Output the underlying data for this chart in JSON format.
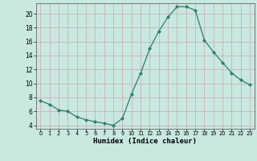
{
  "x": [
    0,
    1,
    2,
    3,
    4,
    5,
    6,
    7,
    8,
    9,
    10,
    11,
    12,
    13,
    14,
    15,
    16,
    17,
    18,
    19,
    20,
    21,
    22,
    23
  ],
  "y": [
    7.5,
    7.0,
    6.2,
    6.0,
    5.2,
    4.8,
    4.5,
    4.3,
    4.0,
    5.0,
    8.5,
    11.5,
    15.0,
    17.5,
    19.5,
    21.0,
    21.0,
    20.5,
    16.2,
    14.5,
    13.0,
    11.5,
    10.5,
    9.8
  ],
  "line_color": "#2e7d6e",
  "marker": "D",
  "markersize": 2.0,
  "linewidth": 0.9,
  "xlabel": "Humidex (Indice chaleur)",
  "xlabel_fontsize": 6.5,
  "background_color": "#c8e8e0",
  "grid_color_minor": "#d9eeea",
  "grid_color_major": "#c0ddd8",
  "xlim": [
    -0.5,
    23.5
  ],
  "ylim": [
    3.5,
    21.5
  ],
  "yticks": [
    4,
    6,
    8,
    10,
    12,
    14,
    16,
    18,
    20
  ],
  "xticks": [
    0,
    1,
    2,
    3,
    4,
    5,
    6,
    7,
    8,
    9,
    10,
    11,
    12,
    13,
    14,
    15,
    16,
    17,
    18,
    19,
    20,
    21,
    22,
    23
  ]
}
